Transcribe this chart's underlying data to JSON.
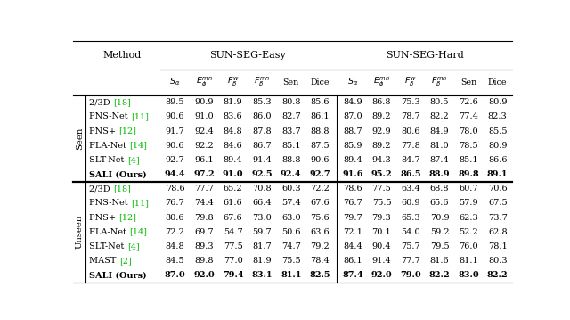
{
  "title_easy": "SUN-SEG-Easy",
  "title_hard": "SUN-SEG-Hard",
  "col_headers_latex": [
    "$S_{\\alpha}$",
    "$E_{\\phi}^{mn}$",
    "$F_{\\beta}^{w}$",
    "$F_{\\beta}^{mn}$",
    "Sen",
    "Dice"
  ],
  "row_label_col": "Method",
  "section_seen": "Seen",
  "section_unseen": "Unseen",
  "seen_rows": [
    {
      "method": "2/3D",
      "ref": "[18]",
      "easy": [
        89.5,
        90.9,
        81.9,
        85.3,
        80.8,
        85.6
      ],
      "hard": [
        84.9,
        86.8,
        75.3,
        80.5,
        72.6,
        80.9
      ],
      "bold": false
    },
    {
      "method": "PNS-Net",
      "ref": "[11]",
      "easy": [
        90.6,
        91.0,
        83.6,
        86.0,
        82.7,
        86.1
      ],
      "hard": [
        87.0,
        89.2,
        78.7,
        82.2,
        77.4,
        82.3
      ],
      "bold": false
    },
    {
      "method": "PNS+",
      "ref": "[12]",
      "easy": [
        91.7,
        92.4,
        84.8,
        87.8,
        83.7,
        88.8
      ],
      "hard": [
        88.7,
        92.9,
        80.6,
        84.9,
        78.0,
        85.5
      ],
      "bold": false
    },
    {
      "method": "FLA-Net",
      "ref": "[14]",
      "easy": [
        90.6,
        92.2,
        84.6,
        86.7,
        85.1,
        87.5
      ],
      "hard": [
        85.9,
        89.2,
        77.8,
        81.0,
        78.5,
        80.9
      ],
      "bold": false
    },
    {
      "method": "SLT-Net",
      "ref": "[4]",
      "easy": [
        92.7,
        96.1,
        89.4,
        91.4,
        88.8,
        90.6
      ],
      "hard": [
        89.4,
        94.3,
        84.7,
        87.4,
        85.1,
        86.6
      ],
      "bold": false
    },
    {
      "method": "SALI (Ours)",
      "ref": null,
      "easy": [
        94.4,
        97.2,
        91.0,
        92.5,
        92.4,
        92.7
      ],
      "hard": [
        91.6,
        95.2,
        86.5,
        88.9,
        89.8,
        89.1
      ],
      "bold": true
    }
  ],
  "unseen_rows": [
    {
      "method": "2/3D",
      "ref": "[18]",
      "easy": [
        78.6,
        77.7,
        65.2,
        70.8,
        60.3,
        72.2
      ],
      "hard": [
        78.6,
        77.5,
        63.4,
        68.8,
        60.7,
        70.6
      ],
      "bold": false
    },
    {
      "method": "PNS-Net",
      "ref": "[11]",
      "easy": [
        76.7,
        74.4,
        61.6,
        66.4,
        57.4,
        67.6
      ],
      "hard": [
        76.7,
        75.5,
        60.9,
        65.6,
        57.9,
        67.5
      ],
      "bold": false
    },
    {
      "method": "PNS+",
      "ref": "[12]",
      "easy": [
        80.6,
        79.8,
        67.6,
        73.0,
        63.0,
        75.6
      ],
      "hard": [
        79.7,
        79.3,
        65.3,
        70.9,
        62.3,
        73.7
      ],
      "bold": false
    },
    {
      "method": "FLA-Net",
      "ref": "[14]",
      "easy": [
        72.2,
        69.7,
        54.7,
        59.7,
        50.6,
        63.6
      ],
      "hard": [
        72.1,
        70.1,
        54.0,
        59.2,
        52.2,
        62.8
      ],
      "bold": false
    },
    {
      "method": "SLT-Net",
      "ref": "[4]",
      "easy": [
        84.8,
        89.3,
        77.5,
        81.7,
        74.7,
        79.2
      ],
      "hard": [
        84.4,
        90.4,
        75.7,
        79.5,
        76.0,
        78.1
      ],
      "bold": false
    },
    {
      "method": "MAST",
      "ref": "[2]",
      "easy": [
        84.5,
        89.8,
        77.0,
        81.9,
        75.5,
        78.4
      ],
      "hard": [
        86.1,
        91.4,
        77.7,
        81.6,
        81.1,
        80.3
      ],
      "bold": false
    },
    {
      "method": "SALI (Ours)",
      "ref": null,
      "easy": [
        87.0,
        92.0,
        79.4,
        83.1,
        81.1,
        82.5
      ],
      "hard": [
        87.4,
        92.0,
        79.0,
        82.2,
        83.0,
        82.2
      ],
      "bold": true
    }
  ],
  "bg_color": "#ffffff",
  "text_color": "#000000",
  "ref_color": "#00bb00",
  "line_color": "#000000",
  "figsize": [
    6.4,
    3.59
  ],
  "dpi": 100
}
